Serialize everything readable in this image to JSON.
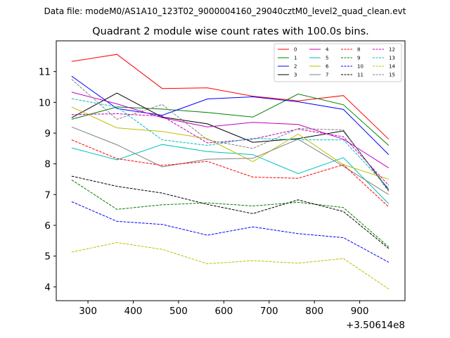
{
  "chart_data": {
    "type": "line",
    "suptitle": "Data file: modeM0/AS1A10_123T02_9000004160_29040cztM0_level2_quad_clean.evt",
    "title": "Quadrant 2 module wise count rates with 100.0s bins.",
    "xlabel": "",
    "ylabel": "",
    "x_offset_label": "+3.50614e8",
    "x": [
      264,
      364,
      464,
      564,
      664,
      764,
      864,
      964
    ],
    "xlim": [
      230,
      1000
    ],
    "ylim": [
      3.55,
      12.0
    ],
    "xticks": [
      300,
      400,
      500,
      600,
      700,
      800,
      900
    ],
    "yticks": [
      4,
      5,
      6,
      7,
      8,
      9,
      10,
      11
    ],
    "grid": false,
    "legend_position": "top-right",
    "series": [
      {
        "name": "0",
        "color": "#ff0000",
        "dashed": false,
        "values": [
          11.33,
          11.56,
          10.45,
          10.47,
          10.2,
          10.05,
          10.22,
          8.8
        ]
      },
      {
        "name": "1",
        "color": "#008000",
        "dashed": false,
        "values": [
          9.45,
          9.85,
          9.78,
          9.67,
          9.52,
          10.27,
          9.92,
          8.6
        ]
      },
      {
        "name": "2",
        "color": "#0000ff",
        "dashed": false,
        "values": [
          10.85,
          9.8,
          9.58,
          10.11,
          10.18,
          10.02,
          9.77,
          8.3
        ]
      },
      {
        "name": "3",
        "color": "#000000",
        "dashed": false,
        "values": [
          9.5,
          10.3,
          9.52,
          9.3,
          8.7,
          8.82,
          9.07,
          7.15
        ]
      },
      {
        "name": "4",
        "color": "#bf00bf",
        "dashed": false,
        "values": [
          10.33,
          9.95,
          9.5,
          9.2,
          9.35,
          9.28,
          8.8,
          7.87
        ]
      },
      {
        "name": "5",
        "color": "#00bfbf",
        "dashed": false,
        "values": [
          8.52,
          8.13,
          8.63,
          8.4,
          8.3,
          7.68,
          8.2,
          6.7
        ]
      },
      {
        "name": "6",
        "color": "#bfbf00",
        "dashed": false,
        "values": [
          9.85,
          9.17,
          9.05,
          8.82,
          8.07,
          8.97,
          7.97,
          7.5
        ]
      },
      {
        "name": "7",
        "color": "#808080",
        "dashed": false,
        "values": [
          9.2,
          8.62,
          7.9,
          8.15,
          8.18,
          8.8,
          7.92,
          7.0
        ]
      },
      {
        "name": "8",
        "color": "#ff0000",
        "dashed": true,
        "values": [
          8.78,
          8.17,
          7.95,
          8.08,
          7.57,
          7.53,
          7.97,
          6.6
        ]
      },
      {
        "name": "9",
        "color": "#008000",
        "dashed": true,
        "values": [
          7.48,
          6.52,
          6.67,
          6.73,
          6.63,
          6.75,
          6.58,
          5.3
        ]
      },
      {
        "name": "10",
        "color": "#0000ff",
        "dashed": true,
        "values": [
          6.77,
          6.13,
          6.03,
          5.68,
          5.95,
          5.73,
          5.6,
          4.8
        ]
      },
      {
        "name": "11",
        "color": "#000000",
        "dashed": true,
        "values": [
          7.6,
          7.27,
          7.05,
          6.68,
          6.38,
          6.83,
          6.45,
          5.25
        ]
      },
      {
        "name": "12",
        "color": "#bf00bf",
        "dashed": true,
        "values": [
          9.6,
          9.63,
          9.55,
          8.68,
          8.8,
          9.13,
          8.88,
          7.3
        ]
      },
      {
        "name": "13",
        "color": "#00bfbf",
        "dashed": true,
        "values": [
          10.12,
          9.85,
          8.78,
          8.6,
          8.83,
          8.78,
          8.78,
          7.2
        ]
      },
      {
        "name": "14",
        "color": "#bfbf00",
        "dashed": true,
        "values": [
          5.13,
          5.44,
          5.22,
          4.75,
          4.85,
          4.77,
          4.92,
          3.93
        ]
      },
      {
        "name": "15",
        "color": "#808080",
        "dashed": true,
        "values": [
          10.75,
          9.45,
          9.93,
          8.78,
          8.5,
          9.15,
          9.1,
          7.1
        ]
      }
    ]
  }
}
